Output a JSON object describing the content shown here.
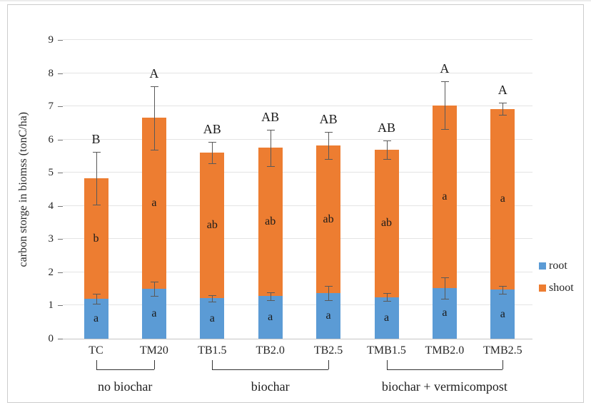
{
  "figure": {
    "background": "#ffffff",
    "frame_border_color": "#cccccc"
  },
  "chart_data": {
    "type": "bar",
    "stacked": true,
    "title": "",
    "xlabel": "",
    "ylabel": "carbon storge in biomss (tonC/ha)",
    "ylim": [
      0,
      9
    ],
    "yticks": [
      0,
      1,
      2,
      3,
      4,
      5,
      6,
      7,
      8,
      9
    ],
    "grid": true,
    "legend_position": "right",
    "categories": [
      "TC",
      "TM20",
      "TB1.5",
      "TB2.0",
      "TB2.5",
      "TMB1.5",
      "TMB2.0",
      "TMB2.5"
    ],
    "series": [
      {
        "name": "root",
        "color": "#5B9BD5",
        "values": [
          1.2,
          1.5,
          1.22,
          1.28,
          1.37,
          1.25,
          1.53,
          1.48
        ],
        "error": [
          0.15,
          0.22,
          0.1,
          0.12,
          0.22,
          0.12,
          0.32,
          0.12
        ],
        "segment_labels": [
          "a",
          "a",
          "a",
          "a",
          "a",
          "a",
          "a",
          "a"
        ]
      },
      {
        "name": "shoot",
        "color": "#ED7D31",
        "values": [
          3.63,
          5.15,
          4.38,
          4.47,
          4.45,
          4.45,
          5.5,
          5.44
        ],
        "segment_labels": [
          "b",
          "a",
          "ab",
          "ab",
          "ab",
          "ab",
          "a",
          "a"
        ]
      }
    ],
    "totals": [
      4.83,
      6.65,
      5.6,
      5.75,
      5.82,
      5.7,
      7.03,
      6.92
    ],
    "total_error": [
      0.8,
      0.95,
      0.32,
      0.55,
      0.4,
      0.28,
      0.72,
      0.18
    ],
    "total_letters": [
      "B",
      "A",
      "AB",
      "AB",
      "AB",
      "AB",
      "A",
      "A"
    ],
    "groups": [
      {
        "label": "no biochar",
        "start": 0,
        "end": 1
      },
      {
        "label": "biochar",
        "start": 2,
        "end": 4
      },
      {
        "label": "biochar + vermicompost",
        "start": 5,
        "end": 7
      }
    ],
    "error_bar_color": "#595959"
  },
  "legend": {
    "items": [
      {
        "label": "root",
        "color": "#5B9BD5"
      },
      {
        "label": "shoot",
        "color": "#ED7D31"
      }
    ]
  }
}
